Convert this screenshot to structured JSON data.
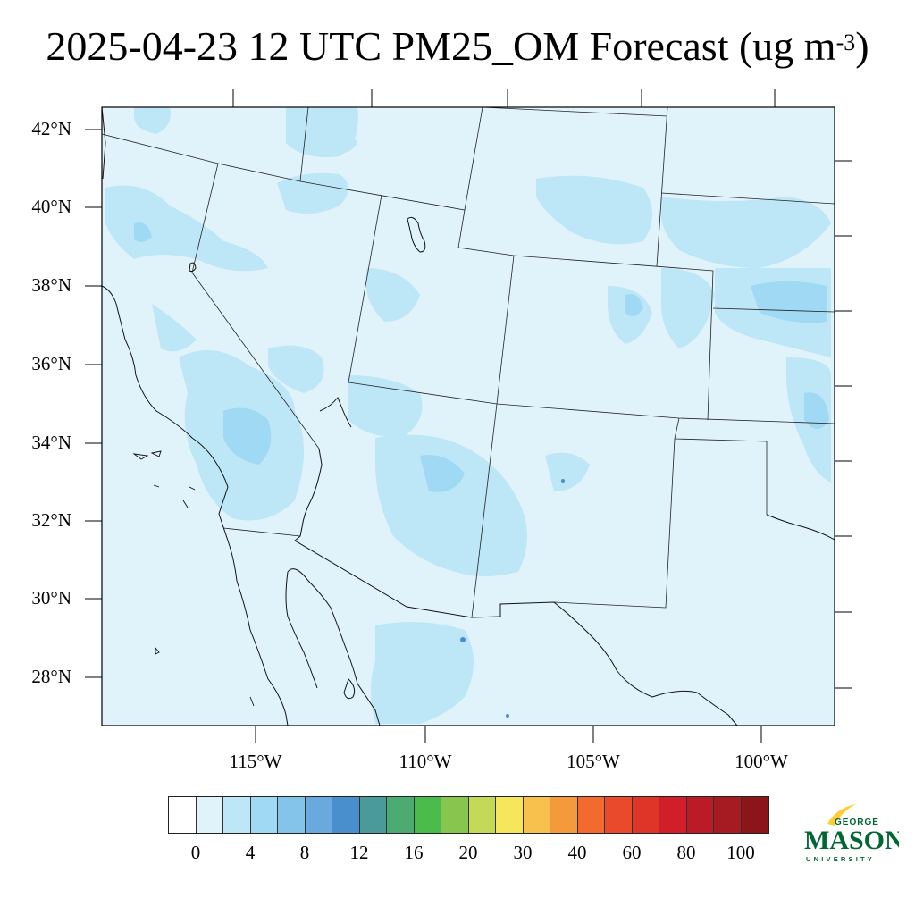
{
  "title": {
    "main": "2025-04-23 12 UTC PM25_OM Forecast (ug m",
    "superscript": "-3",
    "close": ")"
  },
  "map": {
    "background_color": "#e0f3fb",
    "latitude_labels": [
      "42°N",
      "40°N",
      "38°N",
      "36°N",
      "34°N",
      "32°N",
      "30°N",
      "28°N"
    ],
    "longitude_labels": [
      "115°W",
      "110°W",
      "105°W",
      "100°W"
    ]
  },
  "colorbar": {
    "colors": [
      "#ffffff",
      "#e0f3fb",
      "#bde6f7",
      "#9fd9f3",
      "#85c4ea",
      "#6aa9dd",
      "#4a8fcd",
      "#4a9a9a",
      "#4cab72",
      "#4bbb4b",
      "#88c54f",
      "#c4d958",
      "#f6e65c",
      "#f8c04d",
      "#f59a3c",
      "#f26a2d",
      "#e84a2b",
      "#de3528",
      "#d11f2a",
      "#bb1a27",
      "#a61a22",
      "#8b1519"
    ],
    "labels": [
      "0",
      "4",
      "8",
      "12",
      "16",
      "20",
      "30",
      "40",
      "60",
      "80",
      "100"
    ]
  },
  "logo": {
    "line1": "GEORGE",
    "line2": "MASON",
    "line3": "UNIVERSITY",
    "color": "#006633",
    "accent": "#ffcc33"
  }
}
